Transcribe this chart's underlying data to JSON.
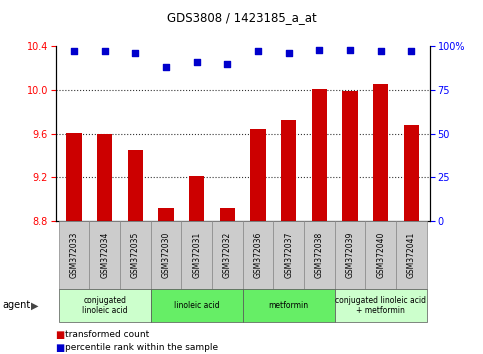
{
  "title": "GDS3808 / 1423185_a_at",
  "samples": [
    "GSM372033",
    "GSM372034",
    "GSM372035",
    "GSM372030",
    "GSM372031",
    "GSM372032",
    "GSM372036",
    "GSM372037",
    "GSM372038",
    "GSM372039",
    "GSM372040",
    "GSM372041"
  ],
  "bar_values": [
    9.61,
    9.6,
    9.45,
    8.92,
    9.21,
    8.92,
    9.64,
    9.72,
    10.01,
    9.99,
    10.05,
    9.68
  ],
  "percentile_values": [
    97,
    97,
    96,
    88,
    91,
    90,
    97,
    96,
    98,
    98,
    97,
    97
  ],
  "ylim_left": [
    8.8,
    10.4
  ],
  "ylim_right": [
    0,
    100
  ],
  "yticks_left": [
    8.8,
    9.2,
    9.6,
    10.0,
    10.4
  ],
  "yticks_right": [
    0,
    25,
    50,
    75,
    100
  ],
  "bar_color": "#cc0000",
  "dot_color": "#0000cc",
  "agent_groups": [
    {
      "label": "conjugated\nlinoleic acid",
      "start": 0,
      "end": 3,
      "color": "#ccffcc"
    },
    {
      "label": "linoleic acid",
      "start": 3,
      "end": 6,
      "color": "#66ee66"
    },
    {
      "label": "metformin",
      "start": 6,
      "end": 9,
      "color": "#66ee66"
    },
    {
      "label": "conjugated linoleic acid\n+ metformin",
      "start": 9,
      "end": 12,
      "color": "#ccffcc"
    }
  ],
  "label_bg": "#cccccc",
  "bar_width": 0.5
}
